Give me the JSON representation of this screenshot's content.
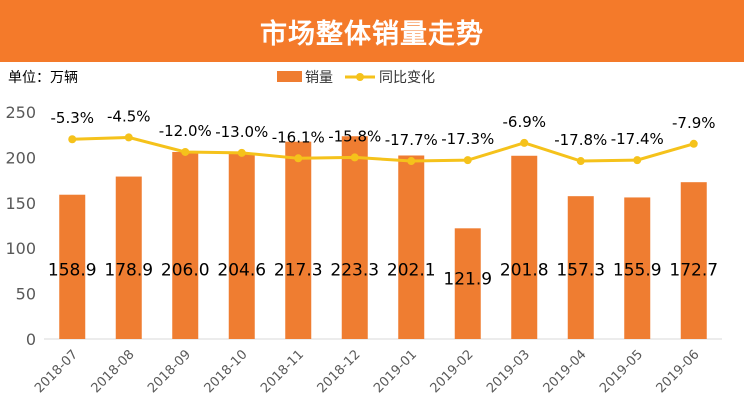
{
  "title": "市场整体销量走势",
  "unit_label": "单位：万辆",
  "colors": {
    "title_bg": "#f47a2a",
    "bar": "#ef7d31",
    "line": "#f5c21b",
    "axis_text": "#595959",
    "grid": "#d9d9d9"
  },
  "chart_data": {
    "type": "bar",
    "categories": [
      "2018-07",
      "2018-08",
      "2018-09",
      "2018-10",
      "2018-11",
      "2018-12",
      "2019-01",
      "2019-02",
      "2019-03",
      "2019-04",
      "2019-05",
      "2019-06"
    ],
    "series": [
      {
        "name": "销量",
        "type": "bar",
        "values": [
          158.9,
          178.9,
          206.0,
          204.6,
          217.3,
          223.3,
          202.1,
          121.9,
          201.8,
          157.3,
          155.9,
          172.7
        ],
        "labels": [
          "158.9",
          "178.9",
          "206.0",
          "204.6",
          "217.3",
          "223.3",
          "202.1",
          "121.9",
          "201.8",
          "157.3",
          "155.9",
          "172.7"
        ]
      },
      {
        "name": "同比变化",
        "type": "line",
        "labels": [
          "-5.3%",
          "-4.5%",
          "-12.0%",
          "-13.0%",
          "-16.1%",
          "-15.8%",
          "-17.7%",
          "-17.3%",
          "-6.9%",
          "-17.8%",
          "-17.4%",
          "-7.9%"
        ],
        "plot_values": [
          220,
          222,
          206,
          205,
          199,
          200,
          196,
          197,
          216,
          196,
          197,
          215
        ]
      }
    ],
    "ylim": [
      0,
      250
    ],
    "yticks": [
      "0",
      "50",
      "100",
      "150",
      "200",
      "250"
    ],
    "grid": false,
    "legend_position": "top"
  }
}
